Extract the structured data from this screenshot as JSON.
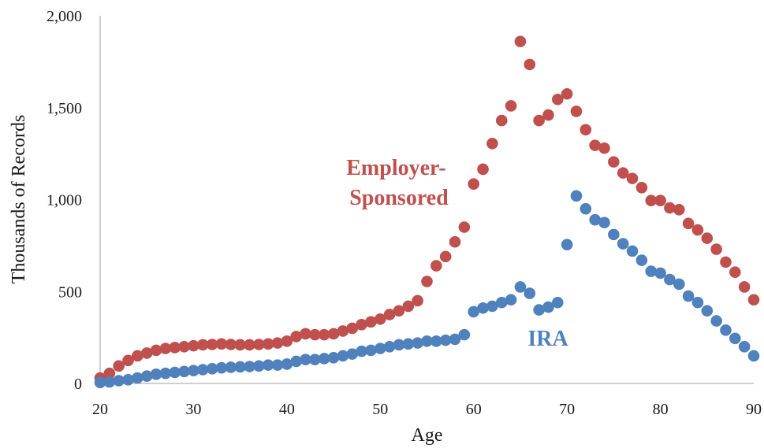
{
  "chart_data": {
    "type": "scatter",
    "xlabel": "Age",
    "ylabel": "Thousands of Records",
    "xlim": [
      20,
      90
    ],
    "ylim": [
      0,
      2000
    ],
    "xticks": [
      "20",
      "30",
      "40",
      "50",
      "60",
      "70",
      "80",
      "90"
    ],
    "yticks": [
      "0",
      "500",
      "1,000",
      "1,500",
      "2,000"
    ],
    "grid": false,
    "x": [
      20,
      21,
      22,
      23,
      24,
      25,
      26,
      27,
      28,
      29,
      30,
      31,
      32,
      33,
      34,
      35,
      36,
      37,
      38,
      39,
      40,
      41,
      42,
      43,
      44,
      45,
      46,
      47,
      48,
      49,
      50,
      51,
      52,
      53,
      54,
      55,
      56,
      57,
      58,
      59,
      60,
      61,
      62,
      63,
      64,
      65,
      66,
      67,
      68,
      69,
      70,
      71,
      72,
      73,
      74,
      75,
      76,
      77,
      78,
      79,
      80,
      81,
      82,
      83,
      84,
      85,
      86,
      87,
      88,
      89,
      90
    ],
    "series": [
      {
        "name": "Employer-Sponsored",
        "color": "#c0504d",
        "values": [
          30,
          55,
          95,
          125,
          150,
          165,
          180,
          190,
          195,
          200,
          205,
          210,
          212,
          215,
          212,
          210,
          210,
          212,
          215,
          220,
          230,
          255,
          270,
          265,
          265,
          270,
          285,
          300,
          320,
          335,
          350,
          375,
          395,
          420,
          450,
          555,
          640,
          690,
          770,
          850,
          1085,
          1165,
          1305,
          1430,
          1510,
          1860,
          1735,
          1430,
          1460,
          1545,
          1575,
          1480,
          1380,
          1295,
          1280,
          1205,
          1145,
          1115,
          1065,
          995,
          995,
          955,
          945,
          870,
          835,
          790,
          730,
          660,
          605,
          525,
          455
        ]
      },
      {
        "name": "IRA",
        "color": "#4f81bd",
        "values": [
          5,
          8,
          15,
          20,
          30,
          40,
          50,
          55,
          60,
          65,
          70,
          75,
          80,
          85,
          88,
          90,
          92,
          95,
          100,
          100,
          105,
          120,
          130,
          130,
          135,
          140,
          150,
          160,
          175,
          180,
          190,
          200,
          210,
          215,
          220,
          230,
          230,
          235,
          240,
          265,
          390,
          410,
          420,
          440,
          455,
          525,
          490,
          400,
          415,
          440,
          755,
          1020,
          950,
          890,
          875,
          810,
          760,
          720,
          670,
          610,
          600,
          565,
          540,
          475,
          440,
          395,
          340,
          290,
          245,
          200,
          150
        ]
      }
    ],
    "annotations": [
      {
        "series": "Employer-Sponsored",
        "lines": [
          "Employer-",
          "Sponsored"
        ],
        "color": "#c0504d"
      },
      {
        "series": "IRA",
        "lines": [
          "IRA"
        ],
        "color": "#4f81bd"
      }
    ]
  }
}
